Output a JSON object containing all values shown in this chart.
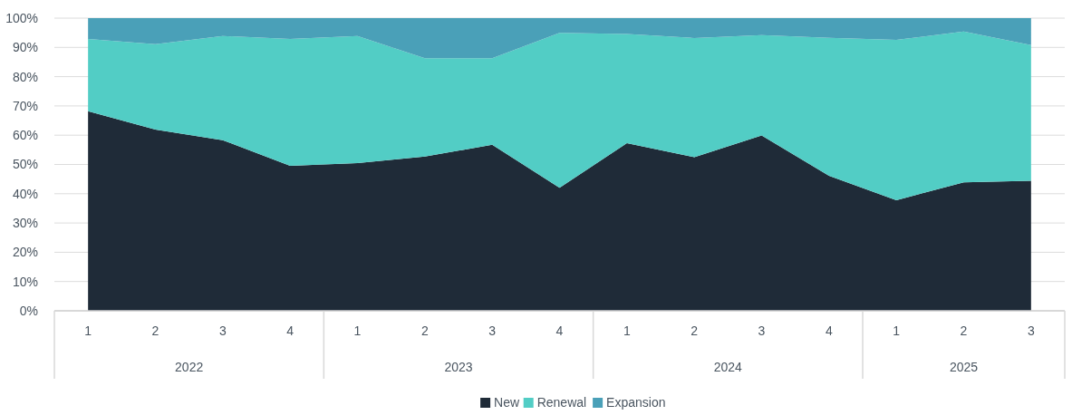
{
  "chart_data": {
    "type": "area",
    "stacked": true,
    "categories": [
      "1",
      "2",
      "3",
      "4",
      "1",
      "2",
      "3",
      "4",
      "1",
      "2",
      "3",
      "4",
      "1",
      "2",
      "3"
    ],
    "series": [
      {
        "name": "New",
        "color": "#1f2b38",
        "values": [
          68.2,
          61.9,
          58.3,
          49.5,
          50.5,
          52.7,
          56.7,
          42,
          57.3,
          52.5,
          59.9,
          46.1,
          37.8,
          43.9,
          44.4
        ]
      },
      {
        "name": "Renewal",
        "color": "#52cdc5",
        "values": [
          24.7,
          29.2,
          35.6,
          43.4,
          43.4,
          33.6,
          29.6,
          53,
          37.3,
          40.7,
          34.3,
          47.2,
          54.8,
          51.5,
          46.4
        ]
      },
      {
        "name": "Expansion",
        "color": "#4aa0b8",
        "values": [
          7.1,
          8.9,
          6.1,
          7.1,
          6.1,
          13.7,
          13.7,
          5,
          5.4,
          6.8,
          5.8,
          6.7,
          7.4,
          4.6,
          9.2
        ]
      }
    ],
    "ylim": [
      0,
      100
    ],
    "yticks": [
      {
        "value": 0,
        "label": "0%"
      },
      {
        "value": 10,
        "label": "10%"
      },
      {
        "value": 20,
        "label": "20%"
      },
      {
        "value": 30,
        "label": "30%"
      },
      {
        "value": 40,
        "label": "40%"
      },
      {
        "value": 50,
        "label": "50%"
      },
      {
        "value": 60,
        "label": "60%"
      },
      {
        "value": 70,
        "label": "70%"
      },
      {
        "value": 80,
        "label": "80%"
      },
      {
        "value": 90,
        "label": "90%"
      },
      {
        "value": 100,
        "label": "100%"
      }
    ],
    "annotations": [
      "2022",
      "2023",
      "2024",
      "2025"
    ],
    "grid": "y",
    "legend": "bottom"
  }
}
